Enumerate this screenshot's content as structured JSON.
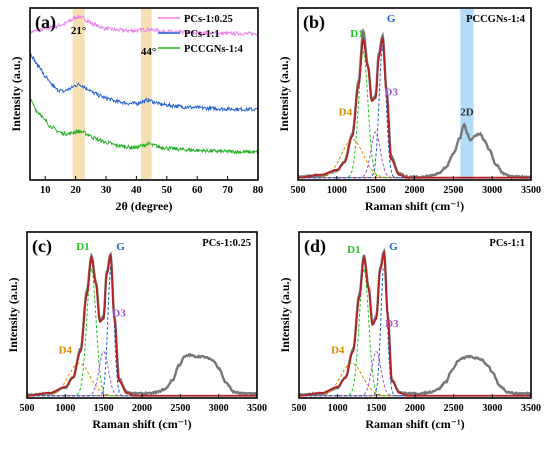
{
  "chart_data": [
    {
      "panel_label": "(a)",
      "type": "line",
      "title": "",
      "xlabel": "2θ (degree)",
      "ylabel": "Intensity (a.u.)",
      "xlim": [
        5,
        80
      ],
      "xticks": [
        10,
        20,
        30,
        40,
        50,
        60,
        70,
        80
      ],
      "legend": "top-right",
      "peak_bands": [
        [
          19,
          23
        ],
        [
          41.5,
          45
        ]
      ],
      "annotations": [
        {
          "text": "21°",
          "x": 21
        },
        {
          "text": "44°",
          "x": 44
        }
      ],
      "series": [
        {
          "name": "PCs-1:0.25",
          "color": "#ee82ee",
          "x": [
            5,
            8,
            12,
            16,
            18,
            20,
            21,
            22,
            24,
            26,
            28,
            30,
            34,
            38,
            40,
            42,
            44,
            46,
            48,
            52,
            56,
            60,
            65,
            70,
            75,
            80
          ],
          "y": [
            0.86,
            0.87,
            0.885,
            0.905,
            0.925,
            0.945,
            0.95,
            0.945,
            0.925,
            0.905,
            0.89,
            0.88,
            0.872,
            0.868,
            0.869,
            0.873,
            0.876,
            0.872,
            0.866,
            0.861,
            0.858,
            0.855,
            0.853,
            0.852,
            0.851,
            0.85
          ]
        },
        {
          "name": "PCs-1:1",
          "color": "#1f5fd6",
          "x": [
            5,
            8,
            10,
            12,
            14,
            16,
            18,
            20,
            21,
            22,
            24,
            26,
            28,
            30,
            34,
            38,
            40,
            42,
            44,
            46,
            48,
            52,
            56,
            60,
            65,
            70,
            75,
            80
          ],
          "y": [
            0.73,
            0.66,
            0.6,
            0.555,
            0.525,
            0.515,
            0.53,
            0.55,
            0.555,
            0.55,
            0.53,
            0.505,
            0.49,
            0.475,
            0.455,
            0.445,
            0.445,
            0.455,
            0.465,
            0.452,
            0.44,
            0.432,
            0.425,
            0.42,
            0.416,
            0.413,
            0.411,
            0.41
          ]
        },
        {
          "name": "PCCGNs-1:4",
          "color": "#22b022",
          "x": [
            5,
            8,
            10,
            12,
            14,
            16,
            18,
            20,
            21,
            22,
            24,
            26,
            28,
            30,
            34,
            38,
            40,
            42,
            44,
            46,
            48,
            52,
            56,
            60,
            65,
            70,
            75,
            80
          ],
          "y": [
            0.46,
            0.39,
            0.345,
            0.31,
            0.285,
            0.27,
            0.27,
            0.28,
            0.283,
            0.28,
            0.265,
            0.245,
            0.23,
            0.218,
            0.2,
            0.19,
            0.19,
            0.2,
            0.21,
            0.2,
            0.19,
            0.182,
            0.176,
            0.172,
            0.168,
            0.165,
            0.163,
            0.162
          ]
        }
      ]
    },
    {
      "panel_label": "(b)",
      "type": "line",
      "title": "PCCGNs-1:4",
      "xlabel": "Raman shift (cm⁻¹)",
      "ylabel": "Intensity (a.u.)",
      "xlim": [
        500,
        3500
      ],
      "xticks": [
        500,
        1000,
        1500,
        2000,
        2500,
        3000,
        3500
      ],
      "highlight_band": [
        2590,
        2760
      ],
      "raw": {
        "x": [
          500,
          800,
          1000,
          1100,
          1200,
          1280,
          1340,
          1400,
          1450,
          1500,
          1540,
          1590,
          1640,
          1700,
          1800,
          1900,
          2000,
          2100,
          2200,
          2300,
          2400,
          2500,
          2580,
          2640,
          2680,
          2720,
          2780,
          2840,
          2900,
          2960,
          3050,
          3150,
          3250,
          3350,
          3450,
          3500
        ],
        "y": [
          0.02,
          0.03,
          0.06,
          0.12,
          0.3,
          0.64,
          0.97,
          0.75,
          0.52,
          0.55,
          0.82,
          0.94,
          0.58,
          0.15,
          0.04,
          0.02,
          0.02,
          0.02,
          0.03,
          0.04,
          0.08,
          0.17,
          0.27,
          0.36,
          0.3,
          0.26,
          0.29,
          0.3,
          0.26,
          0.2,
          0.1,
          0.04,
          0.02,
          0.02,
          0.02,
          0.02
        ]
      },
      "fit": {
        "x": [
          500,
          800,
          1000,
          1100,
          1200,
          1280,
          1340,
          1400,
          1450,
          1500,
          1540,
          1590,
          1640,
          1700,
          1800,
          1900,
          2000,
          2500,
          3500
        ],
        "y": [
          0.0,
          0.02,
          0.05,
          0.1,
          0.27,
          0.6,
          0.9,
          0.72,
          0.5,
          0.52,
          0.78,
          0.91,
          0.55,
          0.12,
          0.02,
          0.0,
          0.0,
          0.0,
          0.0
        ]
      },
      "components": [
        {
          "name": "D4",
          "center": 1200,
          "height": 0.25,
          "width": 140,
          "color": "#e08a00"
        },
        {
          "name": "D1",
          "center": 1340,
          "height": 0.82,
          "width": 60,
          "color": "#22c522"
        },
        {
          "name": "D3",
          "center": 1500,
          "height": 0.3,
          "width": 60,
          "color": "#9b59d0"
        },
        {
          "name": "G",
          "center": 1590,
          "height": 0.86,
          "width": 45,
          "color": "#1f5fd6"
        }
      ],
      "peak_labels": [
        {
          "text": "D4",
          "x": 1110,
          "y": 0.42,
          "color": "#e08a00"
        },
        {
          "text": "D1",
          "x": 1260,
          "y": 0.93,
          "color": "#22c522"
        },
        {
          "text": "D3",
          "x": 1700,
          "y": 0.55,
          "color": "#9b59d0"
        },
        {
          "text": "G",
          "x": 1700,
          "y": 1.03,
          "color": "#1f5fd6"
        },
        {
          "text": "2D",
          "x": 2675,
          "y": 0.42,
          "color": "#333333"
        }
      ]
    },
    {
      "panel_label": "(c)",
      "type": "line",
      "title": "PCs-1:0.25",
      "xlabel": "Raman shift (cm⁻¹)",
      "ylabel": "Intensity (a.u.)",
      "xlim": [
        500,
        3500
      ],
      "xticks": [
        500,
        1000,
        1500,
        2000,
        2500,
        3000,
        3500
      ],
      "raw": {
        "x": [
          500,
          800,
          1000,
          1100,
          1200,
          1280,
          1340,
          1400,
          1450,
          1500,
          1540,
          1590,
          1640,
          1700,
          1800,
          1900,
          2000,
          2100,
          2200,
          2300,
          2400,
          2480,
          2560,
          2620,
          2700,
          2780,
          2860,
          2940,
          3000,
          3100,
          3200,
          3300,
          3400,
          3500
        ],
        "y": [
          0.02,
          0.03,
          0.07,
          0.14,
          0.33,
          0.72,
          0.96,
          0.78,
          0.52,
          0.55,
          0.85,
          0.97,
          0.55,
          0.13,
          0.04,
          0.03,
          0.03,
          0.03,
          0.04,
          0.06,
          0.12,
          0.22,
          0.28,
          0.29,
          0.28,
          0.28,
          0.27,
          0.25,
          0.2,
          0.1,
          0.04,
          0.03,
          0.03,
          0.03
        ]
      },
      "fit": {
        "x": [
          500,
          800,
          1000,
          1100,
          1200,
          1280,
          1340,
          1400,
          1450,
          1500,
          1540,
          1590,
          1640,
          1700,
          1800,
          1900,
          2000,
          2500,
          3500
        ],
        "y": [
          0.0,
          0.02,
          0.06,
          0.12,
          0.3,
          0.68,
          0.93,
          0.75,
          0.5,
          0.52,
          0.82,
          0.94,
          0.52,
          0.1,
          0.02,
          0.0,
          0.0,
          0.0,
          0.0
        ]
      },
      "components": [
        {
          "name": "D4",
          "center": 1180,
          "height": 0.22,
          "width": 140,
          "color": "#e08a00"
        },
        {
          "name": "D1",
          "center": 1340,
          "height": 0.86,
          "width": 60,
          "color": "#22c522"
        },
        {
          "name": "D3",
          "center": 1500,
          "height": 0.3,
          "width": 60,
          "color": "#9b59d0"
        },
        {
          "name": "G",
          "center": 1595,
          "height": 0.88,
          "width": 40,
          "color": "#1f5fd6"
        }
      ],
      "peak_labels": [
        {
          "text": "D4",
          "x": 1000,
          "y": 0.3,
          "color": "#e08a00"
        },
        {
          "text": "D1",
          "x": 1230,
          "y": 1.0,
          "color": "#22c522"
        },
        {
          "text": "D3",
          "x": 1700,
          "y": 0.55,
          "color": "#9b59d0"
        },
        {
          "text": "G",
          "x": 1720,
          "y": 1.0,
          "color": "#1f5fd6"
        }
      ]
    },
    {
      "panel_label": "(d)",
      "type": "line",
      "title": "PCs-1:1",
      "xlabel": "Raman shift (cm⁻¹)",
      "ylabel": "Intensity (a.u.)",
      "xlim": [
        500,
        3500
      ],
      "xticks": [
        500,
        1000,
        1500,
        2000,
        2500,
        3000,
        3500
      ],
      "raw": {
        "x": [
          500,
          800,
          1000,
          1100,
          1200,
          1280,
          1340,
          1400,
          1450,
          1500,
          1550,
          1600,
          1650,
          1700,
          1800,
          1900,
          2000,
          2100,
          2200,
          2300,
          2400,
          2480,
          2560,
          2620,
          2700,
          2780,
          2860,
          2940,
          3000,
          3100,
          3200,
          3300,
          3400,
          3500
        ],
        "y": [
          0.02,
          0.03,
          0.07,
          0.14,
          0.33,
          0.7,
          0.96,
          0.75,
          0.5,
          0.55,
          0.88,
          0.99,
          0.55,
          0.12,
          0.04,
          0.03,
          0.03,
          0.03,
          0.04,
          0.06,
          0.11,
          0.19,
          0.25,
          0.27,
          0.28,
          0.27,
          0.26,
          0.22,
          0.17,
          0.08,
          0.04,
          0.03,
          0.03,
          0.03
        ]
      },
      "fit": {
        "x": [
          500,
          800,
          1000,
          1100,
          1200,
          1280,
          1340,
          1400,
          1450,
          1500,
          1550,
          1600,
          1650,
          1700,
          1800,
          1900,
          2000,
          2500,
          3500
        ],
        "y": [
          0.0,
          0.02,
          0.06,
          0.12,
          0.3,
          0.66,
          0.93,
          0.72,
          0.48,
          0.52,
          0.85,
          0.96,
          0.52,
          0.1,
          0.02,
          0.0,
          0.0,
          0.0,
          0.0
        ]
      },
      "components": [
        {
          "name": "D4",
          "center": 1180,
          "height": 0.22,
          "width": 140,
          "color": "#e08a00"
        },
        {
          "name": "D1",
          "center": 1340,
          "height": 0.86,
          "width": 60,
          "color": "#22c522"
        },
        {
          "name": "D3",
          "center": 1500,
          "height": 0.3,
          "width": 60,
          "color": "#9b59d0"
        },
        {
          "name": "G",
          "center": 1600,
          "height": 0.9,
          "width": 40,
          "color": "#1f5fd6"
        }
      ],
      "peak_labels": [
        {
          "text": "D4",
          "x": 1000,
          "y": 0.3,
          "color": "#e08a00"
        },
        {
          "text": "D1",
          "x": 1210,
          "y": 0.98,
          "color": "#22c522"
        },
        {
          "text": "D3",
          "x": 1700,
          "y": 0.48,
          "color": "#9b59d0"
        },
        {
          "text": "G",
          "x": 1720,
          "y": 1.0,
          "color": "#1f5fd6"
        }
      ]
    }
  ],
  "colors": {
    "raw": "#777777",
    "fit": "#b22222",
    "axis": "#000000",
    "band_xrd": "#f3d9a8",
    "band_2d": "#9fd3f5"
  }
}
